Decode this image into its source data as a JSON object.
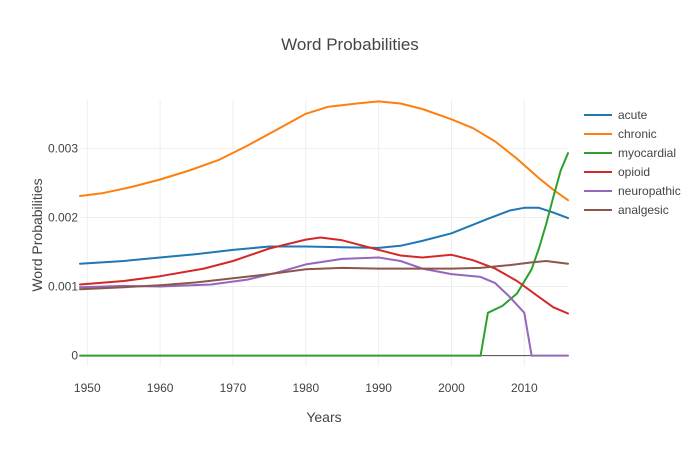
{
  "chart_data": {
    "type": "line",
    "title": "Word Probabilities",
    "xlabel": "Years",
    "ylabel": "Word Probabilities",
    "xlim": [
      1949,
      2016
    ],
    "ylim": [
      -0.00015,
      0.0037
    ],
    "xticks": [
      1950,
      1960,
      1970,
      1980,
      1990,
      2000,
      2010
    ],
    "yticks": [
      0,
      0.001,
      0.002,
      0.003
    ],
    "ytick_labels": [
      "0",
      "0.001",
      "0.002",
      "0.003"
    ],
    "grid": true,
    "legend_position": "right",
    "series": [
      {
        "name": "acute",
        "color": "#1f77b4",
        "x": [
          1949,
          1955,
          1960,
          1965,
          1970,
          1975,
          1980,
          1985,
          1990,
          1993,
          1996,
          2000,
          2005,
          2008,
          2010,
          2012,
          2014,
          2016
        ],
        "y": [
          0.00133,
          0.00137,
          0.00142,
          0.00147,
          0.00153,
          0.00158,
          0.00158,
          0.00157,
          0.00156,
          0.00159,
          0.00166,
          0.00177,
          0.00198,
          0.0021,
          0.00214,
          0.00214,
          0.00207,
          0.00199
        ]
      },
      {
        "name": "chronic",
        "color": "#ff7f0e",
        "x": [
          1949,
          1952,
          1956,
          1960,
          1964,
          1968,
          1972,
          1976,
          1980,
          1983,
          1987,
          1990,
          1993,
          1996,
          2000,
          2003,
          2006,
          2009,
          2012,
          2014,
          2016
        ],
        "y": [
          0.00231,
          0.00235,
          0.00244,
          0.00255,
          0.00268,
          0.00283,
          0.00304,
          0.00327,
          0.0035,
          0.0036,
          0.00365,
          0.00368,
          0.00365,
          0.00357,
          0.00342,
          0.00329,
          0.0031,
          0.00285,
          0.00257,
          0.0024,
          0.00225
        ]
      },
      {
        "name": "myocardial",
        "color": "#2ca02c",
        "x": [
          1949,
          2004,
          2005,
          2007,
          2009,
          2011,
          2012,
          2013,
          2014,
          2015,
          2016
        ],
        "y": [
          0,
          0,
          0.00062,
          0.00072,
          0.0009,
          0.00125,
          0.00155,
          0.0019,
          0.0023,
          0.00268,
          0.00293
        ]
      },
      {
        "name": "opioid",
        "color": "#d62728",
        "x": [
          1949,
          1955,
          1960,
          1966,
          1970,
          1975,
          1980,
          1982,
          1985,
          1990,
          1993,
          1996,
          2000,
          2003,
          2006,
          2009,
          2012,
          2014,
          2016
        ],
        "y": [
          0.00103,
          0.00108,
          0.00115,
          0.00126,
          0.00137,
          0.00155,
          0.00168,
          0.00171,
          0.00167,
          0.00153,
          0.00145,
          0.00142,
          0.00146,
          0.00138,
          0.00126,
          0.00108,
          0.00085,
          0.0007,
          0.00061
        ]
      },
      {
        "name": "neuropathic",
        "color": "#9467bd",
        "x": [
          1949,
          1955,
          1960,
          1967,
          1972,
          1976,
          1980,
          1985,
          1990,
          1993,
          1996,
          2000,
          2004,
          2006,
          2008,
          2010,
          2011,
          2012,
          2014,
          2016
        ],
        "y": [
          0.00099,
          0.00101,
          0.001,
          0.00103,
          0.0011,
          0.0012,
          0.00132,
          0.0014,
          0.00142,
          0.00137,
          0.00126,
          0.00118,
          0.00114,
          0.00105,
          0.00085,
          0.00062,
          0,
          0,
          0,
          0
        ]
      },
      {
        "name": "analgesic",
        "color": "#8c564b",
        "x": [
          1949,
          1955,
          1960,
          1965,
          1970,
          1975,
          1980,
          1985,
          1990,
          1995,
          2000,
          2004,
          2008,
          2011,
          2013,
          2016
        ],
        "y": [
          0.00096,
          0.00099,
          0.00102,
          0.00106,
          0.00112,
          0.00118,
          0.00125,
          0.00127,
          0.00126,
          0.00126,
          0.00126,
          0.00127,
          0.00131,
          0.00135,
          0.00137,
          0.00133
        ]
      }
    ]
  }
}
